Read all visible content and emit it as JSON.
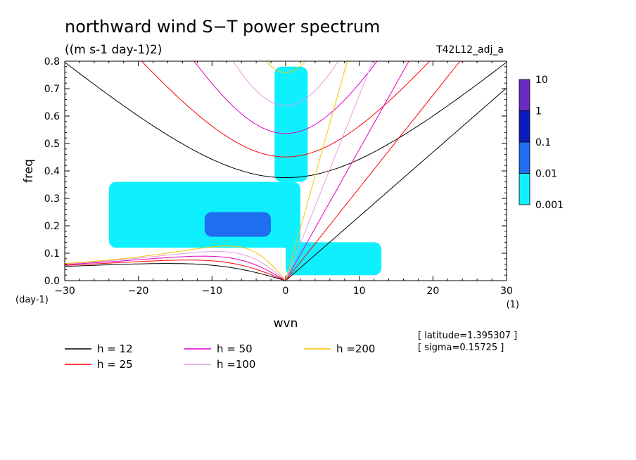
{
  "chart_data": {
    "type": "heatmap",
    "title": "northward wind S−T power spectrum",
    "subtitle": "((m s-1 day-1)2)",
    "run_label": "T42L12_adj_a",
    "xlabel": "wvn",
    "ylabel": "freq",
    "x_unit": "(1)",
    "y_unit": "(day-1)",
    "xlim": [
      -30,
      30
    ],
    "ylim": [
      0,
      0.8
    ],
    "x_ticks": [
      -30,
      -20,
      -10,
      0,
      10,
      20,
      30
    ],
    "x_tick_labels": [
      "−30",
      "−20",
      "−10",
      "0",
      "10",
      "20",
      "30"
    ],
    "y_ticks": [
      0.0,
      0.1,
      0.2,
      0.3,
      0.4,
      0.5,
      0.6,
      0.7,
      0.8
    ],
    "y_tick_labels": [
      "0.0",
      "0.1",
      "0.2",
      "0.3",
      "0.4",
      "0.5",
      "0.6",
      "0.7",
      "0.8"
    ],
    "colorbar": {
      "levels": [
        "10",
        "1",
        "0.1",
        "0.01",
        "0.001"
      ],
      "colors": [
        "#6a2bc4",
        "#0a1cbe",
        "#1f6ef0",
        "#0ff0ff"
      ]
    },
    "shaded_regions": [
      {
        "level": "0.001",
        "color": "#0ff0ff",
        "wvn": [
          -24,
          2
        ],
        "freq": [
          0.12,
          0.36
        ]
      },
      {
        "level": "0.001",
        "color": "#0ff0ff",
        "wvn": [
          -1.5,
          3
        ],
        "freq": [
          0.36,
          0.78
        ]
      },
      {
        "level": "0.001",
        "color": "#0ff0ff",
        "wvn": [
          0,
          13
        ],
        "freq": [
          0.02,
          0.14
        ]
      },
      {
        "level": "0.01",
        "color": "#1f6ef0",
        "wvn": [
          -11,
          -2
        ],
        "freq": [
          0.16,
          0.25
        ]
      }
    ],
    "dispersion_curves": [
      {
        "name": "h = 12",
        "color": "#000000",
        "equivalent_depth": 12
      },
      {
        "name": "h = 25",
        "color": "#ff0000",
        "equivalent_depth": 25
      },
      {
        "name": "h = 50",
        "color": "#e000c8",
        "equivalent_depth": 50
      },
      {
        "name": "h =100",
        "color": "#e39be0",
        "equivalent_depth": 100
      },
      {
        "name": "h =200",
        "color": "#f5c400",
        "equivalent_depth": 200
      }
    ],
    "annotations": [
      "[ latitude=1.395307 ]",
      "[ sigma=0.15725 ]"
    ]
  }
}
